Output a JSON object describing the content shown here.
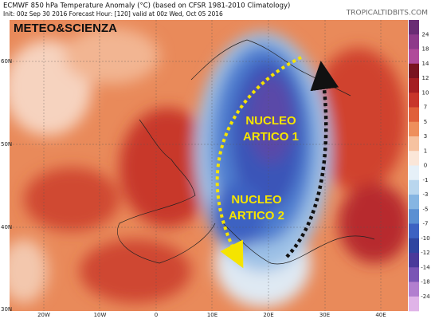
{
  "header": {
    "title": "ECMWF 850 hPa Temperature Anomaly (°C) (based on CFSR 1981-2010 Climatology)",
    "subtitle": "Init: 00z Sep 30 2016   Forecast Hour: [120]   valid at 00z Wed, Oct 05 2016",
    "site": "TROPICALTIDBITS.COM"
  },
  "watermark": "METEO&SCIENZA",
  "annotations": [
    {
      "line1": "NUCLEO",
      "line2": "ARTICO 1"
    },
    {
      "line1": "NUCLEO",
      "line2": "ARTICO 2"
    }
  ],
  "colorbar": {
    "labels": [
      "24",
      "18",
      "14",
      "12",
      "10",
      "7",
      "5",
      "3",
      "1",
      "0",
      "-1",
      "-3",
      "-5",
      "-7",
      "-10",
      "-12",
      "-14",
      "-18",
      "-24"
    ]
  },
  "latitude_labels": [
    "60N",
    "50N",
    "40N",
    "30N"
  ],
  "longitude_labels": [
    "20W",
    "10W",
    "0",
    "10E",
    "20E",
    "30E",
    "40E"
  ]
}
